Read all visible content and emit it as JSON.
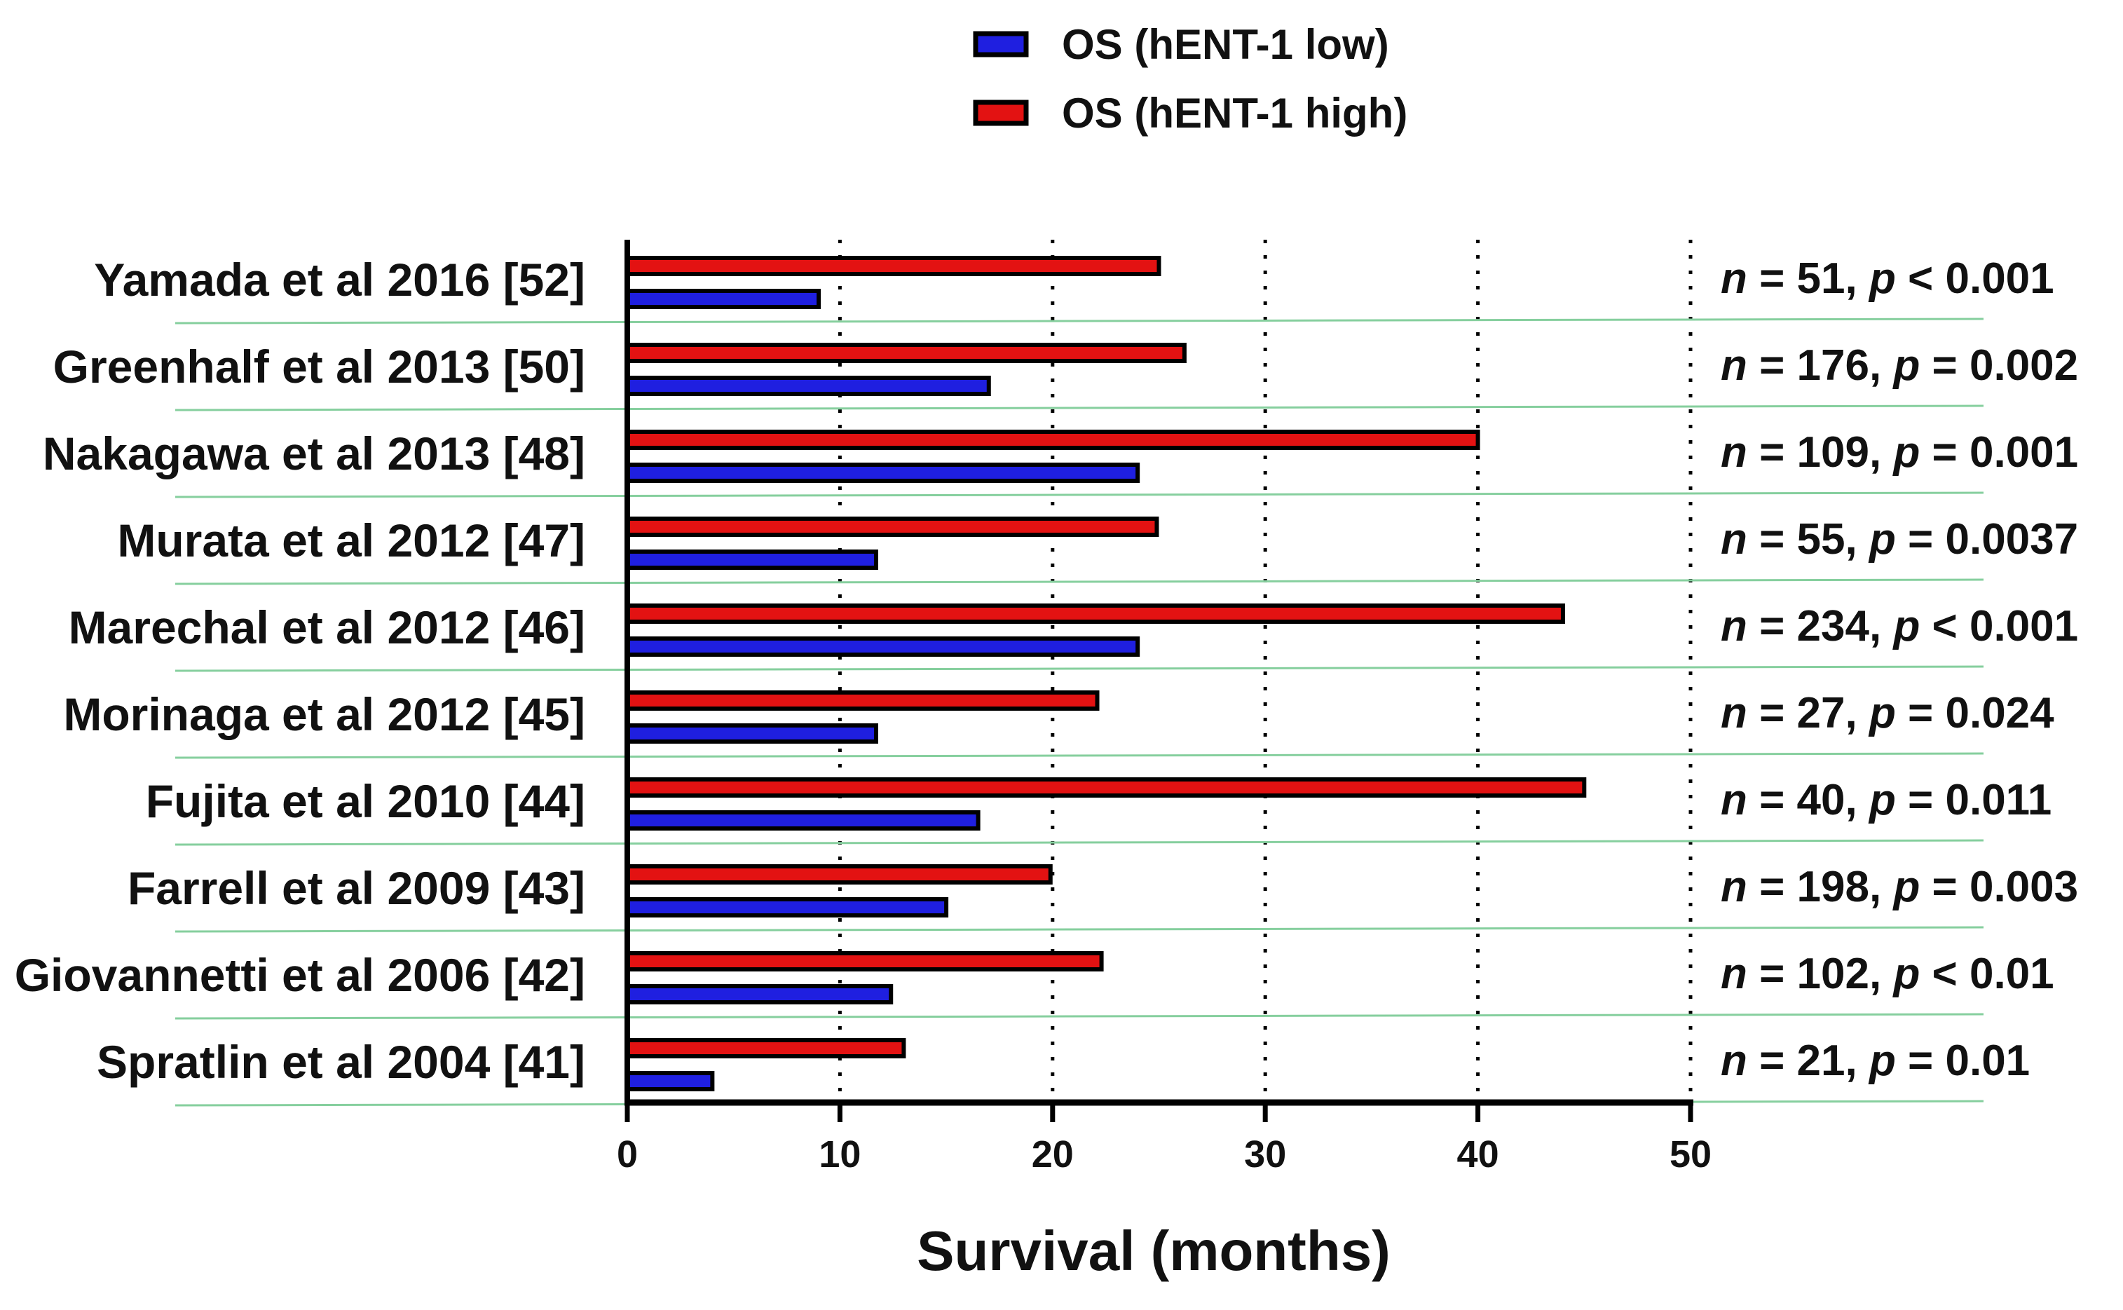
{
  "colors": {
    "low": "#1f1fe0",
    "high": "#e31212",
    "bar_outline": "#000000",
    "separator": "#86cf9e",
    "gridline": "#000000",
    "axis": "#000000"
  },
  "legend": {
    "items": [
      {
        "key": "low",
        "label": "OS (hENT-1 low)"
      },
      {
        "key": "high",
        "label": "OS (hENT-1 high)"
      }
    ]
  },
  "chart_data": {
    "type": "bar",
    "orientation": "horizontal",
    "xlabel": "Survival (months)",
    "xlim": [
      0,
      50
    ],
    "xticks": [
      0,
      10,
      20,
      30,
      40,
      50
    ],
    "gridlines": "dotted vertical at 10, 20, 30, 40, 50",
    "legend_position": "top-center",
    "categories": [
      "Yamada et al 2016 [52]",
      "Greenhalf et al 2013 [50]",
      "Nakagawa et al 2013 [48]",
      "Murata et al 2012 [47]",
      "Marechal et al 2012 [46]",
      "Morinaga et al 2012 [45]",
      "Fujita et al 2010 [44]",
      "Farrell et al 2009 [43]",
      "Giovannetti et al 2006 [42]",
      "Spratlin et al 2004 [41]"
    ],
    "series": [
      {
        "name": "OS (hENT-1 high)",
        "key": "high",
        "values": [
          25,
          26.2,
          40,
          24.9,
          44,
          22.1,
          45,
          19.9,
          22.3,
          13
        ]
      },
      {
        "name": "OS (hENT-1 low)",
        "key": "low",
        "values": [
          9,
          17,
          24,
          11.7,
          24,
          11.7,
          16.5,
          15,
          12.4,
          4
        ]
      }
    ],
    "annotations": [
      {
        "n": "51",
        "p_rel": "<",
        "p": "0.001"
      },
      {
        "n": "176",
        "p_rel": "=",
        "p": "0.002"
      },
      {
        "n": "109",
        "p_rel": "=",
        "p": "0.001"
      },
      {
        "n": "55",
        "p_rel": "=",
        "p": "0.0037"
      },
      {
        "n": "234",
        "p_rel": "<",
        "p": "0.001"
      },
      {
        "n": "27",
        "p_rel": "=",
        "p": "0.024"
      },
      {
        "n": "40",
        "p_rel": "=",
        "p": "0.011"
      },
      {
        "n": "198",
        "p_rel": "=",
        "p": "0.003"
      },
      {
        "n": "102",
        "p_rel": "<",
        "p": "0.01"
      },
      {
        "n": "21",
        "p_rel": "=",
        "p": "0.01"
      }
    ]
  }
}
